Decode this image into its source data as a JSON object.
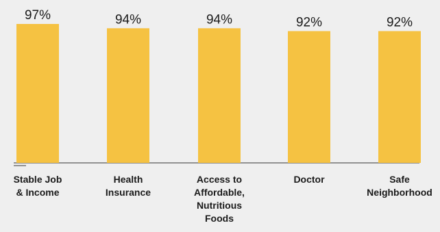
{
  "chart_data": {
    "type": "bar",
    "categories": [
      "Stable Job & Income",
      "Health Insurance",
      "Access to Affordable, Nutritious Foods",
      "Doctor",
      "Safe Neighborhood"
    ],
    "values": [
      97,
      94,
      94,
      92,
      92
    ],
    "value_labels": [
      "97%",
      "94%",
      "94%",
      "92%",
      "92%"
    ],
    "color": "#f5c242"
  }
}
